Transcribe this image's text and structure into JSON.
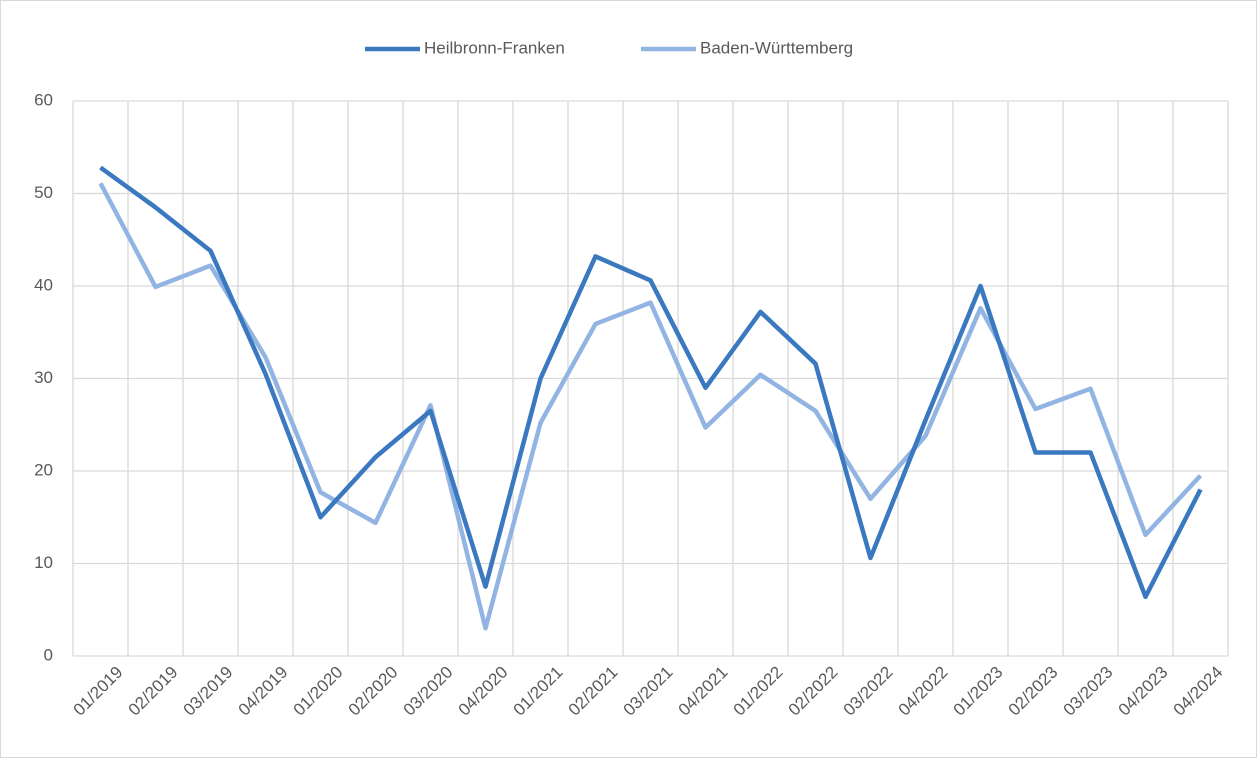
{
  "chart_data": {
    "type": "line",
    "categories": [
      "01/2019",
      "02/2019",
      "03/2019",
      "04/2019",
      "01/2020",
      "02/2020",
      "03/2020",
      "04/2020",
      "01/2021",
      "02/2021",
      "03/2021",
      "04/2021",
      "01/2022",
      "02/2022",
      "03/2022",
      "04/2022",
      "01/2023",
      "02/2023",
      "03/2023",
      "04/2023",
      "04/2024"
    ],
    "series": [
      {
        "name": "Heilbronn-Franken",
        "color": "#3a78c0",
        "values": [
          52.8,
          48.5,
          43.8,
          30.5,
          15.0,
          21.5,
          26.5,
          7.5,
          30.0,
          43.2,
          40.6,
          29.0,
          37.2,
          31.6,
          10.6,
          25.5,
          40.0,
          22.0,
          22.0,
          6.4,
          18.0
        ]
      },
      {
        "name": "Baden-Württemberg",
        "color": "#92b4e3",
        "values": [
          51.1,
          39.9,
          42.2,
          32.3,
          17.7,
          14.4,
          27.1,
          3.0,
          25.2,
          35.9,
          38.2,
          24.7,
          30.4,
          26.5,
          17.0,
          23.8,
          37.6,
          26.7,
          28.9,
          13.1,
          19.5
        ]
      }
    ],
    "ylim": [
      0,
      60
    ],
    "yticks": [
      0,
      10,
      20,
      30,
      40,
      50,
      60
    ],
    "grid": true,
    "legend": "top"
  }
}
